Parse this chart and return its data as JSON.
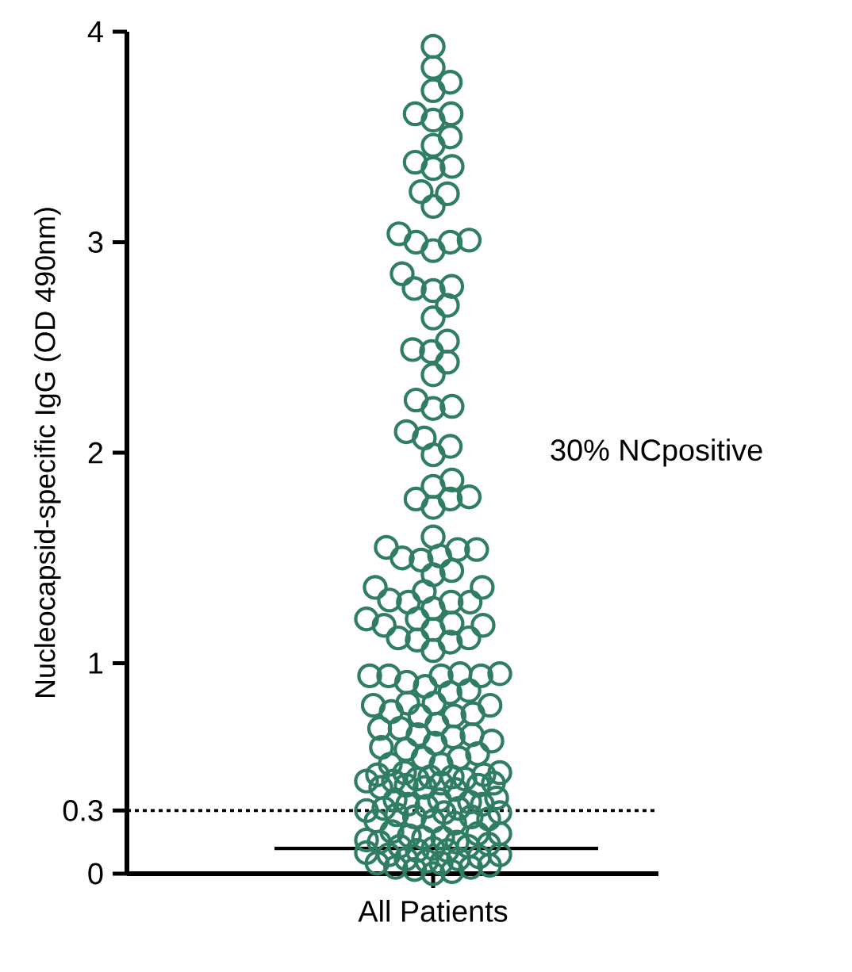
{
  "chart_data": {
    "type": "scatter",
    "ylabel": "Nucleocapsid-specific IgG (OD 490nm)",
    "categories": [
      "All Patients"
    ],
    "ylim": [
      0,
      4
    ],
    "yticks": [
      0,
      0.3,
      1,
      2,
      3,
      4
    ],
    "marker": "circle",
    "grid": false,
    "annotations": [
      "30% NCpositive"
    ],
    "ref_lines": [
      {
        "axis": "y",
        "value": 0.3,
        "line_style": "dotted"
      },
      {
        "axis": "y",
        "value": 0.12,
        "line_style": "solid"
      }
    ],
    "series": [
      {
        "color": "#2e7d64",
        "x": [
          "All Patients",
          "All Patients",
          "All Patients",
          "All Patients",
          "All Patients",
          "All Patients",
          "All Patients",
          "All Patients",
          "All Patients",
          "All Patients",
          "All Patients",
          "All Patients",
          "All Patients",
          "All Patients",
          "All Patients",
          "All Patients",
          "All Patients",
          "All Patients",
          "All Patients",
          "All Patients",
          "All Patients",
          "All Patients",
          "All Patients",
          "All Patients",
          "All Patients",
          "All Patients",
          "All Patients",
          "All Patients",
          "All Patients",
          "All Patients",
          "All Patients",
          "All Patients",
          "All Patients",
          "All Patients",
          "All Patients",
          "All Patients",
          "All Patients",
          "All Patients",
          "All Patients",
          "All Patients",
          "All Patients",
          "All Patients",
          "All Patients",
          "All Patients",
          "All Patients",
          "All Patients",
          "All Patients",
          "All Patients",
          "All Patients",
          "All Patients",
          "All Patients",
          "All Patients",
          "All Patients",
          "All Patients",
          "All Patients",
          "All Patients",
          "All Patients",
          "All Patients",
          "All Patients",
          "All Patients",
          "All Patients",
          "All Patients",
          "All Patients",
          "All Patients",
          "All Patients",
          "All Patients",
          "All Patients",
          "All Patients",
          "All Patients",
          "All Patients",
          "All Patients",
          "All Patients",
          "All Patients",
          "All Patients",
          "All Patients",
          "All Patients",
          "All Patients",
          "All Patients",
          "All Patients",
          "All Patients",
          "All Patients",
          "All Patients",
          "All Patients",
          "All Patients",
          "All Patients",
          "All Patients",
          "All Patients",
          "All Patients",
          "All Patients",
          "All Patients",
          "All Patients",
          "All Patients",
          "All Patients",
          "All Patients",
          "All Patients",
          "All Patients",
          "All Patients",
          "All Patients",
          "All Patients",
          "All Patients",
          "All Patients",
          "All Patients",
          "All Patients",
          "All Patients",
          "All Patients",
          "All Patients",
          "All Patients",
          "All Patients",
          "All Patients",
          "All Patients",
          "All Patients",
          "All Patients",
          "All Patients",
          "All Patients",
          "All Patients",
          "All Patients",
          "All Patients",
          "All Patients",
          "All Patients",
          "All Patients",
          "All Patients",
          "All Patients",
          "All Patients",
          "All Patients",
          "All Patients",
          "All Patients",
          "All Patients",
          "All Patients",
          "All Patients",
          "All Patients",
          "All Patients",
          "All Patients",
          "All Patients",
          "All Patients",
          "All Patients",
          "All Patients",
          "All Patients",
          "All Patients",
          "All Patients",
          "All Patients",
          "All Patients",
          "All Patients",
          "All Patients",
          "All Patients",
          "All Patients",
          "All Patients",
          "All Patients",
          "All Patients",
          "All Patients",
          "All Patients",
          "All Patients",
          "All Patients",
          "All Patients",
          "All Patients",
          "All Patients",
          "All Patients",
          "All Patients",
          "All Patients",
          "All Patients",
          "All Patients",
          "All Patients",
          "All Patients",
          "All Patients",
          "All Patients",
          "All Patients",
          "All Patients",
          "All Patients",
          "All Patients",
          "All Patients",
          "All Patients",
          "All Patients"
        ],
        "values": [
          3.93,
          3.83,
          3.76,
          3.72,
          3.61,
          3.58,
          3.61,
          3.5,
          3.46,
          3.38,
          3.35,
          3.36,
          3.24,
          3.23,
          3.17,
          3.04,
          3.0,
          3.0,
          2.96,
          3.01,
          2.79,
          2.77,
          2.85,
          2.7,
          2.78,
          2.53,
          2.48,
          2.64,
          2.43,
          2.49,
          2.37,
          2.25,
          2.21,
          2.22,
          2.1,
          2.07,
          1.99,
          2.03,
          1.84,
          1.78,
          1.74,
          1.78,
          1.79,
          1.87,
          1.55,
          1.54,
          1.5,
          1.44,
          1.49,
          1.51,
          1.54,
          1.6,
          1.42,
          1.36,
          1.3,
          1.29,
          1.26,
          1.29,
          1.29,
          1.34,
          1.36,
          1.21,
          1.19,
          1.18,
          1.12,
          1.11,
          1.06,
          1.1,
          1.12,
          1.16,
          1.18,
          1.21,
          0.95,
          0.94,
          0.94,
          0.89,
          0.86,
          0.87,
          0.91,
          0.94,
          0.94,
          0.95,
          0.81,
          0.8,
          0.76,
          0.75,
          0.71,
          0.69,
          0.69,
          0.75,
          0.77,
          0.8,
          0.81,
          0.66,
          0.63,
          0.6,
          0.57,
          0.55,
          0.52,
          0.52,
          0.55,
          0.59,
          0.62,
          0.65,
          0.66,
          0.48,
          0.47,
          0.46,
          0.45,
          0.44,
          0.43,
          0.42,
          0.41,
          0.4,
          0.41,
          0.42,
          0.43,
          0.44,
          0.45,
          0.46,
          0.47,
          0.48,
          0.36,
          0.35,
          0.34,
          0.33,
          0.32,
          0.31,
          0.3,
          0.29,
          0.28,
          0.27,
          0.26,
          0.25,
          0.24,
          0.25,
          0.27,
          0.29,
          0.31,
          0.33,
          0.35,
          0.2,
          0.19,
          0.18,
          0.17,
          0.16,
          0.15,
          0.14,
          0.13,
          0.12,
          0.11,
          0.1,
          0.09,
          0.08,
          0.07,
          0.06,
          0.05,
          0.04,
          0.03,
          0.02,
          0.01,
          0.0,
          0.19,
          0.17,
          0.15,
          0.13,
          0.11,
          0.09,
          0.07,
          0.05,
          0.03
        ]
      }
    ]
  }
}
